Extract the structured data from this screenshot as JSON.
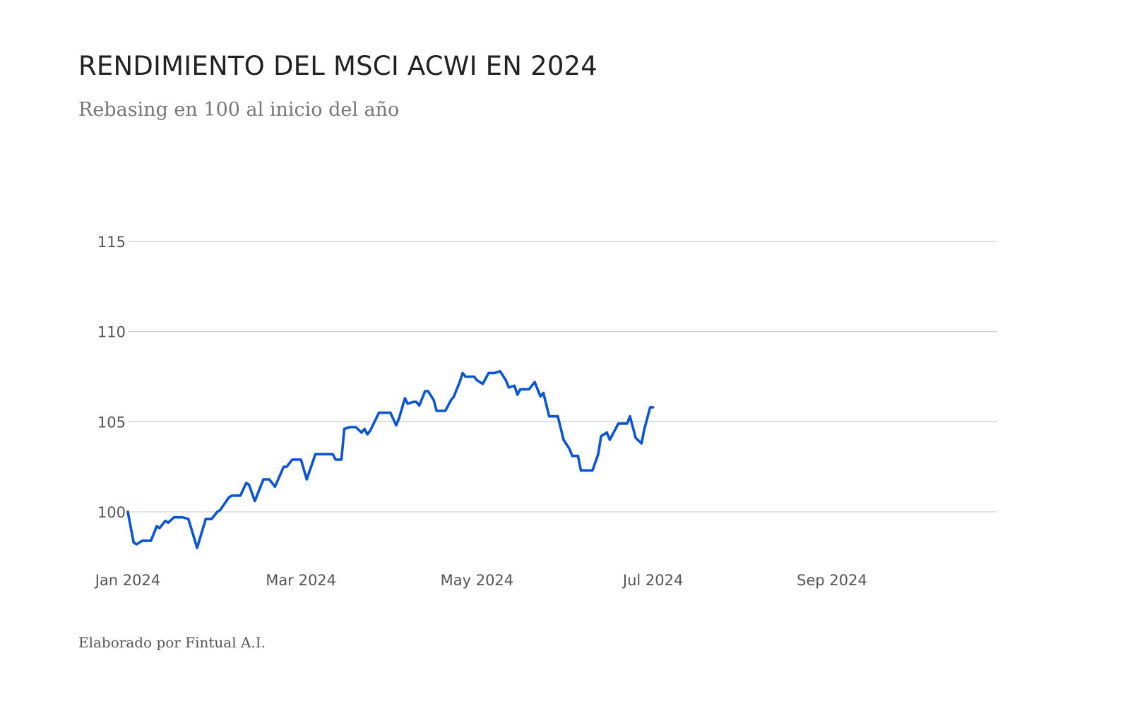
{
  "header": {
    "title": "RENDIMIENTO DEL MSCI ACWI EN 2024",
    "subtitle": "Rebasing en 100 al inicio del año"
  },
  "footer": {
    "note": "Elaborado por Fintual A.I."
  },
  "colors": {
    "line": "#0a55d4",
    "grid": "#cfcfcf"
  },
  "chart_data": {
    "type": "line",
    "title": "RENDIMIENTO DEL MSCI ACWI EN 2024",
    "subtitle": "Rebasing en 100 al inicio del año",
    "xlabel": "",
    "ylabel": "",
    "xlim": [
      "2024-01-01",
      "2024-11-01"
    ],
    "ylim": [
      98,
      119
    ],
    "y_ticks": [
      100,
      105,
      110,
      115
    ],
    "x_ticks": [
      {
        "date": "2024-01-01",
        "label": "Jan 2024"
      },
      {
        "date": "2024-03-01",
        "label": "Mar 2024"
      },
      {
        "date": "2024-05-01",
        "label": "May 2024"
      },
      {
        "date": "2024-07-01",
        "label": "Jul 2024"
      },
      {
        "date": "2024-09-01",
        "label": "Sep 2024"
      }
    ],
    "grid": "horizontal",
    "legend": "none",
    "series": [
      {
        "name": "",
        "points": [
          [
            "2024-01-01",
            100.0
          ],
          [
            "2024-01-03",
            98.3
          ],
          [
            "2024-01-04",
            98.2
          ],
          [
            "2024-01-06",
            98.4
          ],
          [
            "2024-01-09",
            98.4
          ],
          [
            "2024-01-11",
            99.2
          ],
          [
            "2024-01-12",
            99.1
          ],
          [
            "2024-01-14",
            99.5
          ],
          [
            "2024-01-15",
            99.4
          ],
          [
            "2024-01-17",
            99.7
          ],
          [
            "2024-01-20",
            99.7
          ],
          [
            "2024-01-22",
            99.6
          ],
          [
            "2024-01-25",
            98.0
          ],
          [
            "2024-01-28",
            99.6
          ],
          [
            "2024-01-30",
            99.6
          ],
          [
            "2024-02-01",
            100.0
          ],
          [
            "2024-02-02",
            100.1
          ],
          [
            "2024-02-05",
            100.8
          ],
          [
            "2024-02-06",
            100.9
          ],
          [
            "2024-02-09",
            100.9
          ],
          [
            "2024-02-11",
            101.6
          ],
          [
            "2024-02-12",
            101.5
          ],
          [
            "2024-02-14",
            100.6
          ],
          [
            "2024-02-17",
            101.8
          ],
          [
            "2024-02-19",
            101.8
          ],
          [
            "2024-02-21",
            101.4
          ],
          [
            "2024-02-24",
            102.5
          ],
          [
            "2024-02-25",
            102.5
          ],
          [
            "2024-02-27",
            102.9
          ],
          [
            "2024-03-01",
            102.9
          ],
          [
            "2024-03-03",
            101.8
          ],
          [
            "2024-03-06",
            103.2
          ],
          [
            "2024-03-07",
            103.2
          ],
          [
            "2024-03-09",
            103.2
          ],
          [
            "2024-03-12",
            103.2
          ],
          [
            "2024-03-13",
            102.9
          ],
          [
            "2024-03-15",
            102.9
          ],
          [
            "2024-03-16",
            104.6
          ],
          [
            "2024-03-18",
            104.7
          ],
          [
            "2024-03-20",
            104.7
          ],
          [
            "2024-03-22",
            104.4
          ],
          [
            "2024-03-23",
            104.6
          ],
          [
            "2024-03-24",
            104.3
          ],
          [
            "2024-03-25",
            104.5
          ],
          [
            "2024-03-28",
            105.5
          ],
          [
            "2024-03-31",
            105.5
          ],
          [
            "2024-04-01",
            105.5
          ],
          [
            "2024-04-03",
            104.8
          ],
          [
            "2024-04-04",
            105.2
          ],
          [
            "2024-04-06",
            106.3
          ],
          [
            "2024-04-07",
            106.0
          ],
          [
            "2024-04-09",
            106.1
          ],
          [
            "2024-04-10",
            106.1
          ],
          [
            "2024-04-11",
            105.9
          ],
          [
            "2024-04-13",
            106.7
          ],
          [
            "2024-04-14",
            106.7
          ],
          [
            "2024-04-16",
            106.2
          ],
          [
            "2024-04-17",
            105.6
          ],
          [
            "2024-04-20",
            105.6
          ],
          [
            "2024-04-22",
            106.2
          ],
          [
            "2024-04-23",
            106.4
          ],
          [
            "2024-04-25",
            107.2
          ],
          [
            "2024-04-26",
            107.7
          ],
          [
            "2024-04-27",
            107.5
          ],
          [
            "2024-04-30",
            107.5
          ],
          [
            "2024-05-01",
            107.3
          ],
          [
            "2024-05-03",
            107.1
          ],
          [
            "2024-05-05",
            107.7
          ],
          [
            "2024-05-07",
            107.7
          ],
          [
            "2024-05-09",
            107.8
          ],
          [
            "2024-05-11",
            107.3
          ],
          [
            "2024-05-12",
            106.9
          ],
          [
            "2024-05-14",
            107.0
          ],
          [
            "2024-05-15",
            106.5
          ],
          [
            "2024-05-16",
            106.8
          ],
          [
            "2024-05-19",
            106.8
          ],
          [
            "2024-05-21",
            107.2
          ],
          [
            "2024-05-23",
            106.4
          ],
          [
            "2024-05-24",
            106.6
          ],
          [
            "2024-05-26",
            105.3
          ],
          [
            "2024-05-29",
            105.3
          ],
          [
            "2024-05-31",
            104.0
          ],
          [
            "2024-06-02",
            103.5
          ],
          [
            "2024-06-03",
            103.1
          ],
          [
            "2024-06-05",
            103.1
          ],
          [
            "2024-06-06",
            102.3
          ],
          [
            "2024-06-10",
            102.3
          ],
          [
            "2024-06-12",
            103.2
          ],
          [
            "2024-06-13",
            104.2
          ],
          [
            "2024-06-15",
            104.4
          ],
          [
            "2024-06-16",
            104.0
          ],
          [
            "2024-06-19",
            104.9
          ],
          [
            "2024-06-20",
            104.9
          ],
          [
            "2024-06-22",
            104.9
          ],
          [
            "2024-06-23",
            105.3
          ],
          [
            "2024-06-25",
            104.1
          ],
          [
            "2024-06-27",
            103.8
          ],
          [
            "2024-06-28",
            104.6
          ],
          [
            "2024-06-30",
            105.8
          ],
          [
            "2024-07-01",
            105.8
          ]
        ]
      }
    ]
  }
}
